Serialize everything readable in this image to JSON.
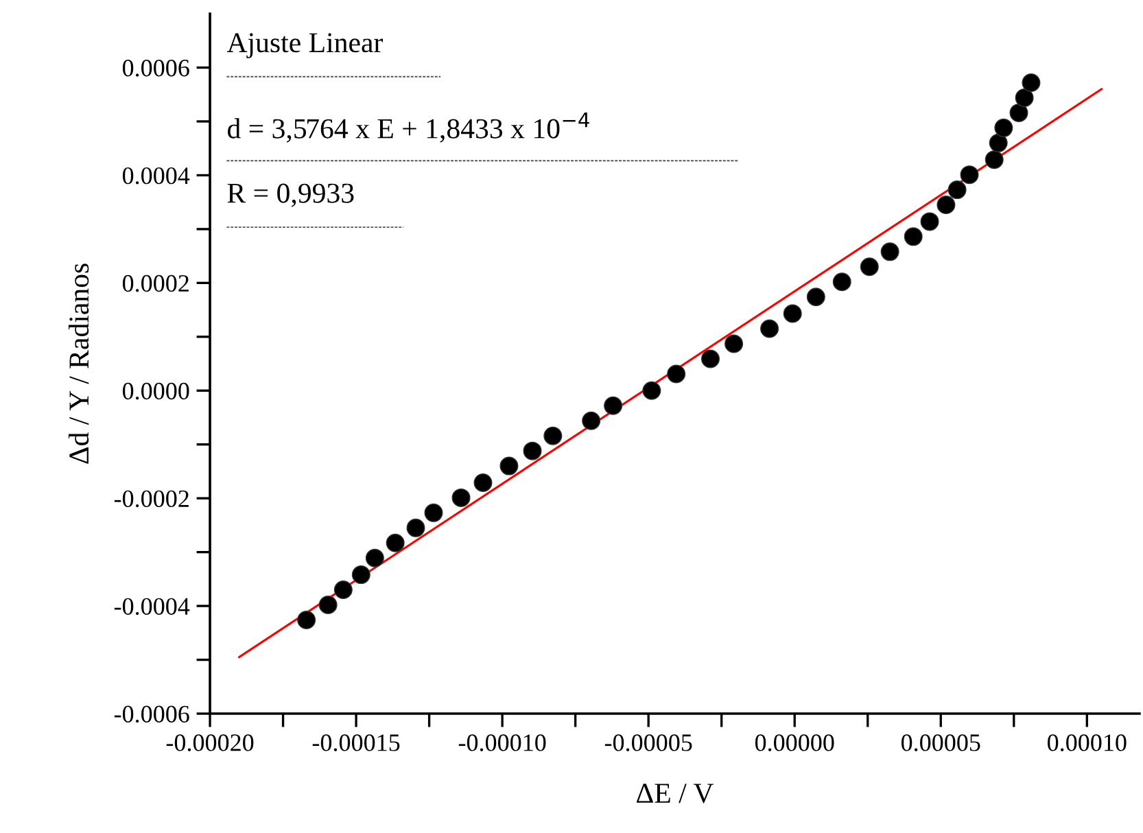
{
  "chart_data": {
    "type": "scatter",
    "xlabel": "ΔE / V",
    "ylabel": "Δd / Y / Radianos",
    "annotations": [
      "Ajuste Linear",
      "d = 3,5764 x E + 1,8433 x 10$^{−4}$",
      "R = 0,9933"
    ],
    "series": [
      {
        "color": "#000000",
        "marker": "circle",
        "x": [
          -0.000167,
          -0.0001596,
          -0.0001544,
          -0.0001483,
          -0.0001436,
          -0.0001366,
          -0.0001296,
          -0.0001235,
          -0.0001141,
          -0.0001066,
          -9.77e-05,
          -8.97e-05,
          -8.27e-05,
          -6.96e-05,
          -6.21e-05,
          -4.89e-05,
          -4.05e-05,
          -2.88e-05,
          -2.08e-05,
          -8.6e-06,
          -7e-07,
          7.3e-06,
          1.62e-05,
          2.56e-05,
          3.26e-05,
          4.06e-05,
          4.62e-05,
          5.18e-05,
          5.56e-05,
          5.98e-05,
          6.83e-05,
          6.97e-05,
          7.15e-05,
          7.67e-05,
          7.86e-05,
          8.09e-05
        ],
        "values": [
          -0.000426,
          -0.000398,
          -0.00037,
          -0.000342,
          -0.000311,
          -0.000283,
          -0.000255,
          -0.000227,
          -0.000199,
          -0.000171,
          -0.00014,
          -0.000112,
          -8.4e-05,
          -5.6e-05,
          -2.8e-05,
          0.0,
          3.1e-05,
          5.9e-05,
          8.7e-05,
          0.000115,
          0.000143,
          0.000174,
          0.000202,
          0.00023,
          0.000258,
          0.000286,
          0.000314,
          0.000345,
          0.000373,
          0.000401,
          0.000429,
          0.00046,
          0.000488,
          0.000516,
          0.000544,
          0.000572
        ]
      },
      {
        "type": "line",
        "color": "#ff0000",
        "marker": "none",
        "line_style": "solid",
        "x": [
          -0.00019,
          0.000105
        ],
        "values": [
          -0.000495,
          0.00056
        ]
      }
    ],
    "xlim": [
      -0.0002,
      0.000118
    ],
    "ylim": [
      -0.0006,
      0.0007
    ],
    "xticks": [
      {
        "value": -0.0002,
        "label": "-0.00020"
      },
      {
        "value": -0.000175,
        "label": null
      },
      {
        "value": -0.00015,
        "label": "-0.00015"
      },
      {
        "value": -0.000125,
        "label": null
      },
      {
        "value": -0.0001,
        "label": "-0.00010"
      },
      {
        "value": -7.5e-05,
        "label": null
      },
      {
        "value": -5e-05,
        "label": "-0.00005"
      },
      {
        "value": -2.5e-05,
        "label": null
      },
      {
        "value": 0.0,
        "label": "0.00000"
      },
      {
        "value": 2.5e-05,
        "label": null
      },
      {
        "value": 5e-05,
        "label": "0.00005"
      },
      {
        "value": 7.5e-05,
        "label": null
      },
      {
        "value": 0.0001,
        "label": "0.00010"
      }
    ],
    "yticks": [
      {
        "value": -0.0006,
        "label": "-0.0006"
      },
      {
        "value": -0.0005,
        "label": null
      },
      {
        "value": -0.0004,
        "label": "-0.0004"
      },
      {
        "value": -0.0003,
        "label": null
      },
      {
        "value": -0.0002,
        "label": "-0.0002"
      },
      {
        "value": -0.0001,
        "label": null
      },
      {
        "value": 0.0,
        "label": "0.0000"
      },
      {
        "value": 0.0001,
        "label": null
      },
      {
        "value": 0.0002,
        "label": "0.0002"
      },
      {
        "value": 0.0003,
        "label": null
      },
      {
        "value": 0.0004,
        "label": "0.0004"
      },
      {
        "value": 0.0005,
        "label": null
      },
      {
        "value": 0.0006,
        "label": "0.0006"
      }
    ],
    "grid": false,
    "legend": false
  }
}
